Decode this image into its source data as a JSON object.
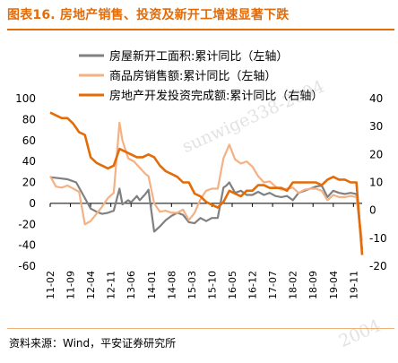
{
  "figure": {
    "title": "图表16. 房地产销售、投资及新开工增速显著下跌",
    "source": "资料来源：Wind，平安证券研究所",
    "watermark": "sunwige338-2004"
  },
  "chart_data": {
    "type": "line",
    "title": "图表16. 房地产销售、投资及新开工增速显著下跌",
    "x_ticks": [
      "11-02",
      "11-09",
      "12-04",
      "12-11",
      "13-06",
      "14-01",
      "14-08",
      "15-03",
      "15-10",
      "16-05",
      "16-12",
      "17-07",
      "18-02",
      "18-09",
      "19-04",
      "19-11"
    ],
    "x_range": [
      "2011-02",
      "2020-02"
    ],
    "left_axis": {
      "ylim": [
        -60,
        100
      ],
      "ticks": [
        "100",
        "80",
        "60",
        "40",
        "20",
        "0",
        "-20",
        "-40",
        "-60"
      ]
    },
    "right_axis": {
      "ylim": [
        -20,
        40
      ],
      "ticks": [
        "40",
        "30",
        "20",
        "10",
        "0",
        "-10",
        "-20"
      ]
    },
    "grid": false,
    "legend_position": "top-center",
    "series": [
      {
        "name": "房屋新开工面积:累计同比（左轴）",
        "axis": "left",
        "color": "#808080",
        "points": [
          [
            "2011-02",
            25
          ],
          [
            "2011-05",
            24
          ],
          [
            "2011-08",
            23
          ],
          [
            "2011-09",
            22
          ],
          [
            "2011-11",
            20
          ],
          [
            "2012-02",
            5
          ],
          [
            "2012-04",
            -5
          ],
          [
            "2012-06",
            -8
          ],
          [
            "2012-08",
            -10
          ],
          [
            "2012-10",
            -9
          ],
          [
            "2012-12",
            -7
          ],
          [
            "2013-02",
            14
          ],
          [
            "2013-03",
            -1
          ],
          [
            "2013-05",
            3
          ],
          [
            "2013-06",
            1
          ],
          [
            "2013-08",
            7
          ],
          [
            "2013-09",
            3
          ],
          [
            "2013-11",
            9
          ],
          [
            "2013-12",
            13
          ],
          [
            "2014-02",
            -27
          ],
          [
            "2014-04",
            -22
          ],
          [
            "2014-06",
            -16
          ],
          [
            "2014-08",
            -12
          ],
          [
            "2014-10",
            -9
          ],
          [
            "2014-12",
            -11
          ],
          [
            "2015-02",
            -18
          ],
          [
            "2015-04",
            -19
          ],
          [
            "2015-06",
            -14
          ],
          [
            "2015-08",
            -17
          ],
          [
            "2015-10",
            -14
          ],
          [
            "2015-12",
            -14
          ],
          [
            "2016-02",
            15
          ],
          [
            "2016-03",
            17
          ],
          [
            "2016-04",
            20
          ],
          [
            "2016-06",
            10
          ],
          [
            "2016-08",
            12
          ],
          [
            "2016-10",
            8
          ],
          [
            "2016-12",
            8
          ],
          [
            "2017-02",
            11
          ],
          [
            "2017-04",
            8
          ],
          [
            "2017-06",
            10
          ],
          [
            "2017-08",
            7
          ],
          [
            "2017-10",
            6
          ],
          [
            "2017-12",
            7
          ],
          [
            "2018-02",
            3
          ],
          [
            "2018-04",
            10
          ],
          [
            "2018-06",
            12
          ],
          [
            "2018-08",
            14
          ],
          [
            "2018-10",
            16
          ],
          [
            "2018-12",
            17
          ],
          [
            "2019-02",
            6
          ],
          [
            "2019-04",
            12
          ],
          [
            "2019-06",
            10
          ],
          [
            "2019-08",
            9
          ],
          [
            "2019-10",
            10
          ],
          [
            "2019-12",
            9
          ],
          [
            "2020-02",
            -44
          ]
        ]
      },
      {
        "name": "商品房销售额:累计同比（左轴）",
        "axis": "left",
        "color": "#f4b183",
        "points": [
          [
            "2011-02",
            26
          ],
          [
            "2011-04",
            16
          ],
          [
            "2011-06",
            15
          ],
          [
            "2011-08",
            17
          ],
          [
            "2011-10",
            14
          ],
          [
            "2011-12",
            11
          ],
          [
            "2012-02",
            -20
          ],
          [
            "2012-04",
            -17
          ],
          [
            "2012-06",
            -10
          ],
          [
            "2012-08",
            -3
          ],
          [
            "2012-10",
            5
          ],
          [
            "2012-12",
            10
          ],
          [
            "2013-02",
            77
          ],
          [
            "2013-03",
            60
          ],
          [
            "2013-05",
            43
          ],
          [
            "2013-07",
            40
          ],
          [
            "2013-09",
            34
          ],
          [
            "2013-11",
            28
          ],
          [
            "2013-12",
            26
          ],
          [
            "2014-02",
            0
          ],
          [
            "2014-04",
            -8
          ],
          [
            "2014-06",
            -7
          ],
          [
            "2014-08",
            -9
          ],
          [
            "2014-10",
            -9
          ],
          [
            "2014-12",
            -6
          ],
          [
            "2015-02",
            -16
          ],
          [
            "2015-04",
            -9
          ],
          [
            "2015-06",
            4
          ],
          [
            "2015-08",
            12
          ],
          [
            "2015-10",
            14
          ],
          [
            "2015-12",
            14
          ],
          [
            "2016-02",
            43
          ],
          [
            "2016-04",
            56
          ],
          [
            "2016-06",
            42
          ],
          [
            "2016-08",
            38
          ],
          [
            "2016-10",
            40
          ],
          [
            "2016-12",
            35
          ],
          [
            "2017-02",
            26
          ],
          [
            "2017-04",
            20
          ],
          [
            "2017-06",
            21
          ],
          [
            "2017-08",
            16
          ],
          [
            "2017-10",
            13
          ],
          [
            "2017-12",
            14
          ],
          [
            "2018-02",
            15
          ],
          [
            "2018-04",
            10
          ],
          [
            "2018-06",
            13
          ],
          [
            "2018-08",
            14
          ],
          [
            "2018-10",
            14
          ],
          [
            "2018-12",
            12
          ],
          [
            "2019-02",
            3
          ],
          [
            "2019-04",
            8
          ],
          [
            "2019-06",
            6
          ],
          [
            "2019-08",
            6
          ],
          [
            "2019-10",
            7
          ],
          [
            "2019-12",
            6
          ],
          [
            "2020-02",
            -36
          ]
        ]
      },
      {
        "name": "房地产开发投资完成额:累计同比（右轴）",
        "axis": "right",
        "color": "#e36c09",
        "points": [
          [
            "2011-02",
            35
          ],
          [
            "2011-04",
            34
          ],
          [
            "2011-06",
            33
          ],
          [
            "2011-08",
            33
          ],
          [
            "2011-10",
            31
          ],
          [
            "2011-12",
            28
          ],
          [
            "2012-02",
            27
          ],
          [
            "2012-04",
            19
          ],
          [
            "2012-06",
            17
          ],
          [
            "2012-08",
            16
          ],
          [
            "2012-10",
            15
          ],
          [
            "2012-12",
            16
          ],
          [
            "2013-02",
            22
          ],
          [
            "2013-04",
            21
          ],
          [
            "2013-06",
            20
          ],
          [
            "2013-08",
            19
          ],
          [
            "2013-10",
            19
          ],
          [
            "2013-12",
            20
          ],
          [
            "2014-02",
            19
          ],
          [
            "2014-04",
            16
          ],
          [
            "2014-06",
            14
          ],
          [
            "2014-08",
            13
          ],
          [
            "2014-10",
            12
          ],
          [
            "2014-12",
            10
          ],
          [
            "2015-02",
            10
          ],
          [
            "2015-04",
            6
          ],
          [
            "2015-06",
            5
          ],
          [
            "2015-08",
            3
          ],
          [
            "2015-10",
            2
          ],
          [
            "2015-12",
            1
          ],
          [
            "2016-02",
            3
          ],
          [
            "2016-04",
            7
          ],
          [
            "2016-06",
            6
          ],
          [
            "2016-08",
            5
          ],
          [
            "2016-10",
            7
          ],
          [
            "2016-12",
            7
          ],
          [
            "2017-02",
            9
          ],
          [
            "2017-04",
            9
          ],
          [
            "2017-06",
            8
          ],
          [
            "2017-08",
            8
          ],
          [
            "2017-10",
            8
          ],
          [
            "2017-12",
            7
          ],
          [
            "2018-02",
            10
          ],
          [
            "2018-04",
            10
          ],
          [
            "2018-06",
            10
          ],
          [
            "2018-08",
            10
          ],
          [
            "2018-10",
            10
          ],
          [
            "2018-12",
            9
          ],
          [
            "2019-02",
            11
          ],
          [
            "2019-04",
            12
          ],
          [
            "2019-06",
            11
          ],
          [
            "2019-08",
            11
          ],
          [
            "2019-10",
            10
          ],
          [
            "2019-12",
            10
          ],
          [
            "2020-02",
            -16
          ]
        ]
      }
    ]
  }
}
